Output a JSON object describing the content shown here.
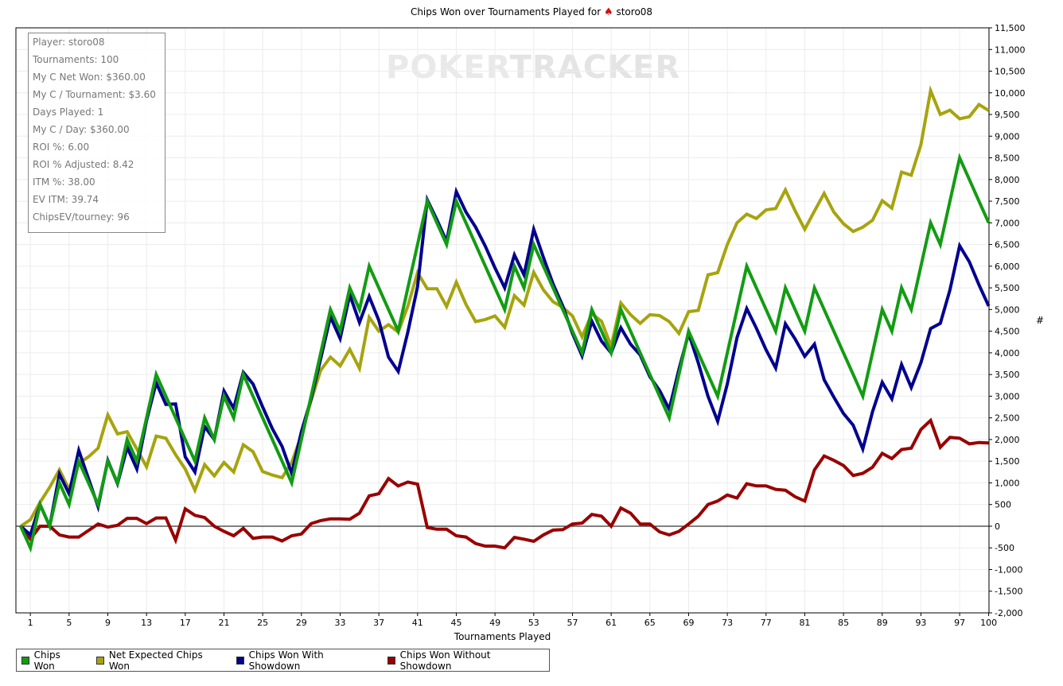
{
  "chart_data": {
    "type": "line",
    "title": "Chips Won over Tournaments Played for",
    "player": "storo08",
    "xlabel": "Tournaments Played",
    "ylabel": "#",
    "xlim": [
      0,
      100
    ],
    "ylim": [
      -2000,
      11500
    ],
    "x_ticks": [
      1,
      5,
      9,
      13,
      17,
      21,
      25,
      29,
      33,
      37,
      41,
      45,
      49,
      53,
      57,
      61,
      65,
      69,
      73,
      77,
      81,
      85,
      89,
      93,
      97,
      100
    ],
    "y_ticks": [
      -2000,
      -1500,
      -1000,
      -500,
      0,
      500,
      1000,
      1500,
      2000,
      2500,
      3000,
      3500,
      4000,
      4500,
      5000,
      5500,
      6000,
      6500,
      7000,
      7500,
      8000,
      8500,
      9000,
      9500,
      10000,
      10500,
      11000,
      11500
    ],
    "y_tick_labels": [
      "-2,000",
      "-1,500",
      "-1,000",
      "-500",
      "0",
      "500",
      "1,000",
      "1,500",
      "2,000",
      "2,500",
      "3,000",
      "3,500",
      "4,000",
      "4,500",
      "5,000",
      "5,500",
      "6,000",
      "6,500",
      "7,000",
      "7,500",
      "8,000",
      "8,500",
      "9,000",
      "9,500",
      "10,000",
      "10,500",
      "11,000",
      "11,500"
    ],
    "grid": true,
    "legend_position": "bottom-left",
    "series": [
      {
        "name": "Chips Won",
        "color": "#129c12",
        "values": [
          0,
          -500,
          500,
          0,
          1000,
          500,
          1500,
          1000,
          500,
          1500,
          1000,
          2000,
          1500,
          2500,
          3500,
          3000,
          2500,
          2000,
          1500,
          2500,
          2000,
          3000,
          2500,
          3500,
          3000,
          2500,
          2000,
          1500,
          1000,
          2000,
          3000,
          4000,
          5000,
          4500,
          5500,
          5000,
          6000,
          5500,
          5000,
          4500,
          5500,
          6500,
          7500,
          7000,
          6500,
          7500,
          7000,
          6500,
          6000,
          5500,
          5000,
          6000,
          5500,
          6500,
          6000,
          5500,
          5000,
          4500,
          4000,
          5000,
          4500,
          4000,
          5000,
          4500,
          4000,
          3500,
          3000,
          2500,
          3500,
          4500,
          4000,
          3500,
          3000,
          4000,
          5000,
          6000,
          5500,
          5000,
          4500,
          5500,
          5000,
          4500,
          5500,
          5000,
          4500,
          4000,
          3500,
          3000,
          4000,
          5000,
          4500,
          5500,
          5000,
          6000,
          7000,
          6500,
          7500,
          8500,
          8000,
          7500,
          7000
        ]
      },
      {
        "name": "Net Expected Chips Won",
        "color": "#a6a40e",
        "values": [
          0,
          150,
          550,
          900,
          1300,
          850,
          1450,
          1600,
          1800,
          2570,
          2130,
          2180,
          1780,
          1370,
          2080,
          2030,
          1650,
          1320,
          830,
          1420,
          1160,
          1470,
          1250,
          1880,
          1720,
          1260,
          1180,
          1120,
          1470,
          2100,
          2900,
          3600,
          3900,
          3700,
          4080,
          3640,
          4820,
          4500,
          4650,
          4480,
          5080,
          5850,
          5480,
          5480,
          5070,
          5630,
          5120,
          4720,
          4770,
          4850,
          4590,
          5320,
          5100,
          5860,
          5450,
          5180,
          5050,
          4850,
          4370,
          4900,
          4730,
          4150,
          5150,
          4880,
          4680,
          4880,
          4860,
          4720,
          4450,
          4950,
          4980,
          5800,
          5850,
          6500,
          7000,
          7200,
          7100,
          7300,
          7330,
          7760,
          7280,
          6850,
          7270,
          7680,
          7250,
          6980,
          6800,
          6900,
          7060,
          7510,
          7340,
          8170,
          8100,
          8800,
          10050,
          9500,
          9600,
          9400,
          9450,
          9730,
          9590
        ]
      },
      {
        "name": "Chips Won With Showdown",
        "color": "#00008f",
        "values": [
          0,
          -200,
          500,
          0,
          1200,
          750,
          1750,
          1100,
          450,
          1520,
          980,
          1820,
          1320,
          2440,
          3310,
          2810,
          2820,
          1600,
          1250,
          2300,
          2000,
          3120,
          2720,
          3550,
          3280,
          2750,
          2250,
          1840,
          1220,
          2180,
          2940,
          3870,
          4830,
          4330,
          5340,
          4700,
          5300,
          4750,
          3900,
          3570,
          4480,
          5530,
          7530,
          7070,
          6570,
          7720,
          7250,
          6900,
          6460,
          5960,
          5500,
          6260,
          5800,
          6850,
          6200,
          5590,
          5080,
          4450,
          3930,
          4730,
          4270,
          4000,
          4580,
          4200,
          3950,
          3450,
          3130,
          2700,
          3620,
          4450,
          3770,
          3000,
          2420,
          3280,
          4350,
          5020,
          4570,
          4070,
          3650,
          4670,
          4320,
          3920,
          4200,
          3380,
          2980,
          2600,
          2330,
          1780,
          2640,
          3320,
          2940,
          3730,
          3200,
          3770,
          4560,
          4680,
          5450,
          6470,
          6100,
          5570,
          5080
        ]
      },
      {
        "name": "Chips Won Without Showdown",
        "color": "#990000",
        "values": [
          0,
          -300,
          0,
          0,
          -200,
          -250,
          -250,
          -100,
          50,
          -20,
          20,
          180,
          180,
          60,
          190,
          190,
          -320,
          400,
          250,
          200,
          0,
          -120,
          -220,
          -50,
          -280,
          -250,
          -250,
          -340,
          -220,
          -180,
          60,
          130,
          170,
          170,
          160,
          300,
          700,
          750,
          1100,
          930,
          1020,
          970,
          -30,
          -70,
          -70,
          -220,
          -250,
          -400,
          -460,
          -460,
          -500,
          -260,
          -300,
          -350,
          -200,
          -90,
          -80,
          50,
          70,
          270,
          230,
          0,
          420,
          300,
          50,
          50,
          -130,
          -200,
          -120,
          50,
          230,
          500,
          580,
          720,
          650,
          980,
          930,
          930,
          850,
          830,
          680,
          580,
          1300,
          1620,
          1520,
          1400,
          1170,
          1220,
          1360,
          1680,
          1560,
          1770,
          1800,
          2230,
          2440,
          1820,
          2050,
          2030,
          1900,
          1930,
          1920
        ]
      }
    ]
  },
  "stats": [
    "Player: storo08",
    "Tournaments: 100",
    "My C Net Won: $360.00",
    "My C / Tournament: $3.60",
    "Days Played: 1",
    "My C / Day: $360.00",
    "ROI %: 6.00",
    "ROI % Adjusted: 8.42",
    "ITM %: 38.00",
    "EV ITM: 39.74",
    "ChipsEV/tourney: 96"
  ],
  "watermark": {
    "part1": "POKER",
    "part2": "TRACKER"
  }
}
